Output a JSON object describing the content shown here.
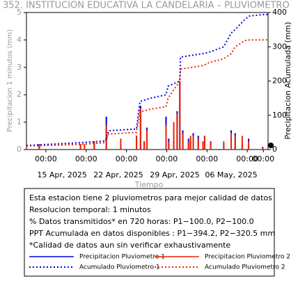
{
  "chart_data": {
    "type": "rain",
    "title": "352. INSTITUCION EDUCATIVA LA CANDELARIA – PLUVIOMETRO",
    "y_label": "Precipitacion 1 minutos (mm)",
    "y2_label": "Precipitacion Acumulada (mm)",
    "x_label": "Tiempo",
    "xlim": [
      "2025-04-10 14:00",
      "2025-05-10 14:00"
    ],
    "ylim": [
      0,
      5
    ],
    "yticks": [
      0,
      1,
      2,
      3,
      4,
      5
    ],
    "y2lim": [
      0,
      400
    ],
    "y2ticks": [
      0,
      100,
      200,
      300,
      400
    ],
    "xticks": [
      {
        "value": "2025-04-13 00:00",
        "label": "00:00"
      },
      {
        "value": "2025-04-18 00:00",
        "label": "00:00"
      },
      {
        "value": "2025-04-23 00:00",
        "label": "00:00"
      },
      {
        "value": "2025-04-28 00:00",
        "label": "00:00"
      },
      {
        "value": "2025-05-03 00:00",
        "label": "00:00"
      },
      {
        "value": "2025-05-08 00:00",
        "label": "00:00"
      },
      {
        "value": "2025-05-10 00:00",
        "label": "00:00"
      }
    ],
    "xdate_ticks": [
      {
        "value": "2025-04-15 00:00",
        "label": "15 Apr, 2025"
      },
      {
        "value": "2025-04-22 00:00",
        "label": "22 Apr, 2025"
      },
      {
        "value": "2025-04-29 00:00",
        "label": "29 Apr, 2025"
      },
      {
        "value": "2025-05-06 00:00",
        "label": "06 May, 2025"
      }
    ],
    "series": [
      {
        "name": "Precipitacion Pluviometro 1",
        "color": "#0000dd",
        "style": "spike",
        "x": [
          "2025-04-12 04:00",
          "2025-04-17 07:00",
          "2025-04-17 19:00",
          "2025-04-19 00:00",
          "2025-04-20 12:00",
          "2025-04-22 07:00",
          "2025-04-24 06:00",
          "2025-04-24 18:00",
          "2025-04-25 05:00",
          "2025-04-25 13:00",
          "2025-04-27 22:00",
          "2025-04-28 06:00",
          "2025-04-28 21:00",
          "2025-04-29 07:00",
          "2025-04-29 15:00",
          "2025-04-30 00:00",
          "2025-04-30 17:00",
          "2025-04-30 23:00",
          "2025-05-01 07:00",
          "2025-05-01 22:00",
          "2025-05-02 12:00",
          "2025-05-02 17:00",
          "2025-05-03 11:00",
          "2025-05-05 02:00",
          "2025-05-06 00:00",
          "2025-05-06 12:00",
          "2025-05-07 09:00",
          "2025-05-08 04:00",
          "2025-05-09 22:00"
        ],
        "values": [
          0.2,
          0.2,
          null,
          0.3,
          1.2,
          0.2,
          0.5,
          1.6,
          0.3,
          0.8,
          1.2,
          0.4,
          0.3,
          1.4,
          2.5,
          0.7,
          0.4,
          0.3,
          0.6,
          0.5,
          0.2,
          0.5,
          0.3,
          0.2,
          0.7,
          0.6,
          0.2,
          0.4,
          0.1
        ]
      },
      {
        "name": "Precipitacion Pluviometro 2",
        "color": "#ee2200",
        "style": "spike",
        "x": [
          "2025-04-12 04:00",
          "2025-04-17 07:00",
          "2025-04-17 19:00",
          "2025-04-19 00:00",
          "2025-04-20 12:00",
          "2025-04-22 07:00",
          "2025-04-24 06:00",
          "2025-04-24 18:00",
          "2025-04-25 05:00",
          "2025-04-25 13:00",
          "2025-04-27 22:00",
          "2025-04-28 06:00",
          "2025-04-28 21:00",
          "2025-04-29 07:00",
          "2025-04-29 15:00",
          "2025-04-30 00:00",
          "2025-04-30 17:00",
          "2025-04-30 23:00",
          "2025-05-01 07:00",
          "2025-05-01 22:00",
          "2025-05-02 12:00",
          "2025-05-02 17:00",
          "2025-05-03 11:00",
          "2025-05-05 02:00",
          "2025-05-06 00:00",
          "2025-05-06 12:00",
          "2025-05-07 09:00",
          "2025-05-08 04:00",
          "2025-05-09 22:00"
        ],
        "values": [
          0.15,
          0.2,
          0.2,
          0.3,
          0.9,
          0.4,
          0.5,
          1.5,
          0.3,
          0.7,
          0.9,
          0.3,
          1.0,
          1.3,
          2.5,
          0.6,
          0.3,
          0.5,
          0.5,
          0.4,
          0.3,
          0.5,
          0.3,
          0.3,
          0.6,
          0.5,
          0.5,
          0.3,
          0.1
        ]
      },
      {
        "name": "Acumulado Pluviometro 1",
        "color": "#0000dd",
        "style": "dotted",
        "axis": "y2",
        "x": [
          "2025-04-10 14:00",
          "2025-04-17 07:00",
          "2025-04-20 09:00",
          "2025-04-20 19:00",
          "2025-04-24 06:00",
          "2025-04-24 16:00",
          "2025-04-26 00:00",
          "2025-04-27 22:00",
          "2025-04-28 04:00",
          "2025-04-29 15:00",
          "2025-04-29 17:00",
          "2025-05-01 03:00",
          "2025-05-02 12:00",
          "2025-05-03 09:00",
          "2025-05-05 02:00",
          "2025-05-06 00:00",
          "2025-05-06 12:00",
          "2025-05-07 17:00",
          "2025-05-08 07:00",
          "2025-05-10 00:00",
          "2025-05-10 14:00"
        ],
        "values": [
          12,
          20,
          25,
          55,
          60,
          140,
          150,
          160,
          185,
          200,
          270,
          275,
          280,
          285,
          300,
          340,
          350,
          380,
          390,
          394,
          394.2
        ]
      },
      {
        "name": "Acumulado Pluviometro 2",
        "color": "#ee2200",
        "style": "dotted",
        "axis": "y2",
        "x": [
          "2025-04-10 14:00",
          "2025-04-17 07:00",
          "2025-04-20 09:00",
          "2025-04-20 19:00",
          "2025-04-24 06:00",
          "2025-04-24 16:00",
          "2025-04-26 00:00",
          "2025-04-27 22:00",
          "2025-04-28 04:00",
          "2025-04-29 15:00",
          "2025-04-29 17:00",
          "2025-05-01 03:00",
          "2025-05-02 12:00",
          "2025-05-03 09:00",
          "2025-05-05 02:00",
          "2025-05-06 00:00",
          "2025-05-06 12:00",
          "2025-05-07 17:00",
          "2025-05-08 07:00",
          "2025-05-10 00:00",
          "2025-05-10 14:00"
        ],
        "values": [
          10,
          15,
          20,
          45,
          50,
          110,
          118,
          125,
          150,
          200,
          235,
          240,
          245,
          255,
          265,
          280,
          300,
          318,
          320,
          320,
          320.5
        ]
      }
    ],
    "info_lines": [
      "Esta estacion tiene 2 pluviometros para mejor calidad de datos",
      "Resolucion temporal: 1 minutos",
      "% Datos transmitidos* en 720 horas: P1−100.0, P2−100.0",
      "PPT Acumulada en datos disponibles : P1−394.2, P2−320.5 mm",
      "*Calidad de datos aun sin verificar exhaustivamente"
    ]
  }
}
